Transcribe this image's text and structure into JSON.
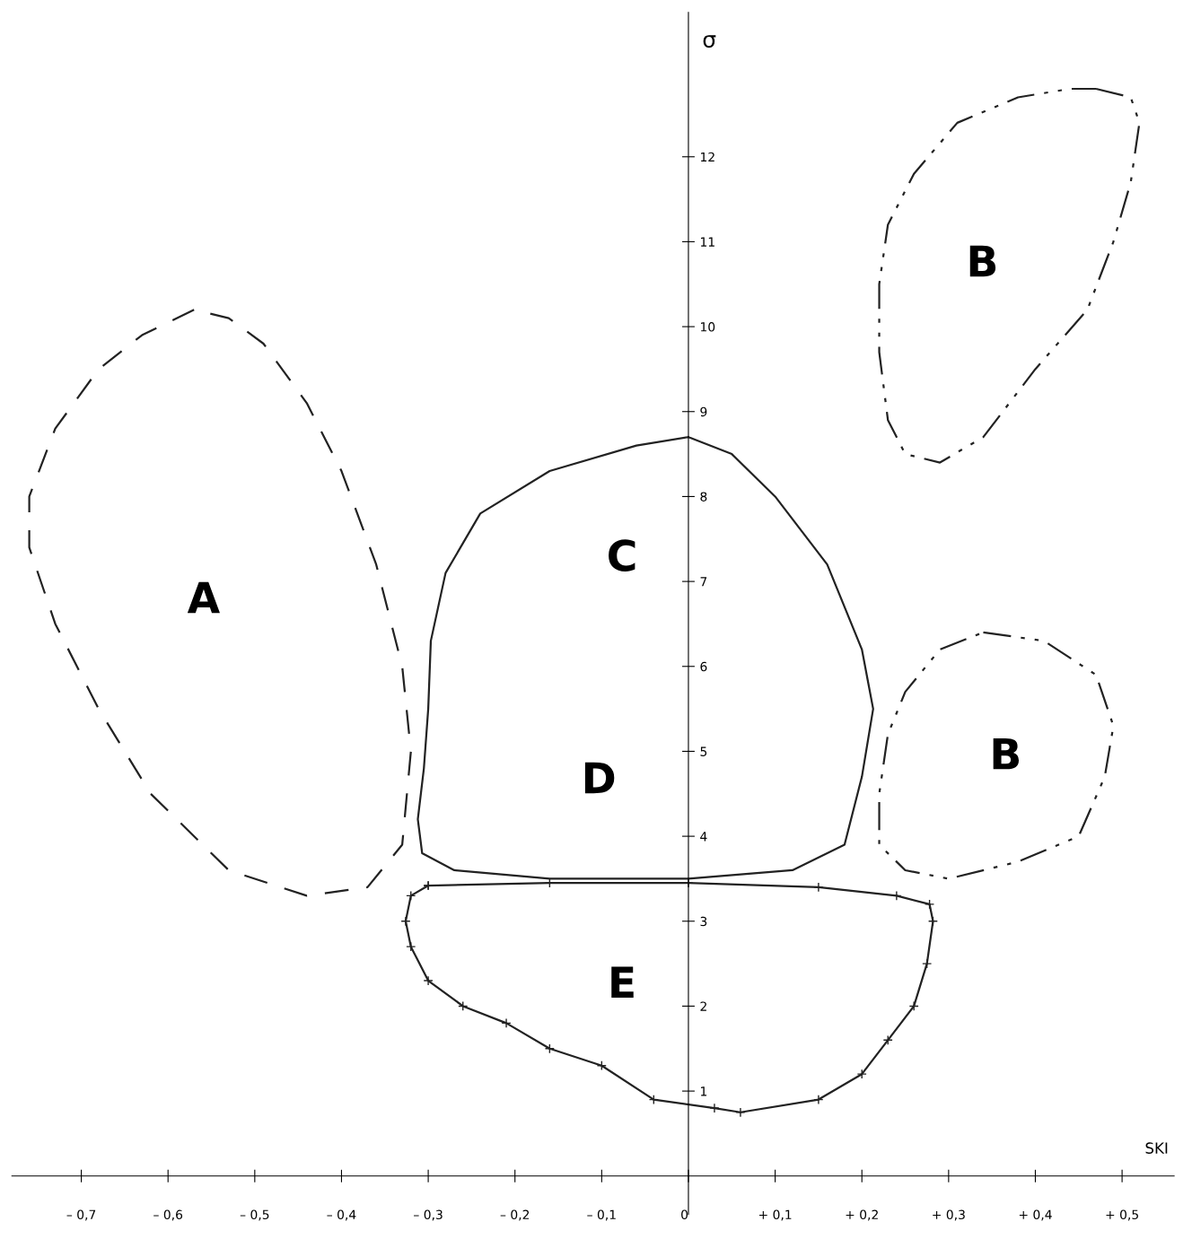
{
  "chart_data": {
    "type": "line",
    "xlabel": "SKI",
    "ylabel": "σ",
    "xlim": [
      -0.78,
      0.56
    ],
    "ylim": [
      -0.45,
      13.7
    ],
    "xticks": [
      {
        "value": -0.7,
        "label": "– 0,7"
      },
      {
        "value": -0.6,
        "label": "– 0,6"
      },
      {
        "value": -0.5,
        "label": "– 0,5"
      },
      {
        "value": -0.4,
        "label": "– 0,4"
      },
      {
        "value": -0.3,
        "label": "– 0,3"
      },
      {
        "value": -0.2,
        "label": "– 0,2"
      },
      {
        "value": -0.1,
        "label": "– 0,1"
      },
      0,
      {
        "value": 0.1,
        "label": "+ 0,1"
      },
      {
        "value": 0.2,
        "label": "+ 0,2"
      },
      {
        "value": 0.3,
        "label": "+ 0,3"
      },
      {
        "value": 0.4,
        "label": "+ 0,4"
      },
      {
        "value": 0.5,
        "label": "+ 0,5"
      }
    ],
    "yticks": [
      1,
      2,
      3,
      4,
      5,
      6,
      7,
      8,
      9,
      10,
      11,
      12
    ],
    "annotations": [
      "A",
      "B",
      "C",
      "D",
      "B",
      "E"
    ]
  }
}
